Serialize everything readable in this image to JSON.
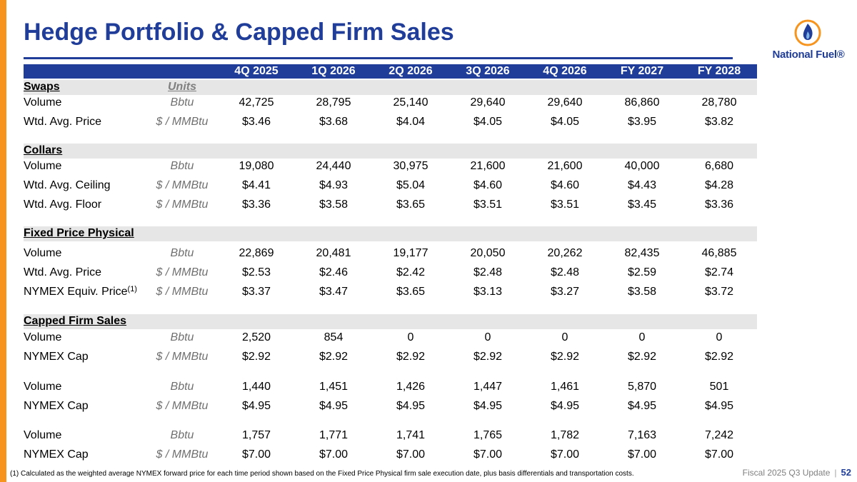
{
  "title": "Hedge Portfolio & Capped Firm Sales",
  "logo": {
    "text": "National Fuel®",
    "icon": "flame-icon"
  },
  "columns": [
    "4Q 2025",
    "1Q 2026",
    "2Q 2026",
    "3Q 2026",
    "4Q 2026",
    "FY 2027",
    "FY 2028"
  ],
  "sections": {
    "swaps": {
      "header": "Swaps",
      "units_header": "Units",
      "rows": [
        {
          "label": "Volume",
          "unit": "Bbtu",
          "values": [
            "42,725",
            "28,795",
            "25,140",
            "29,640",
            "29,640",
            "86,860",
            "28,780"
          ]
        },
        {
          "label": "Wtd. Avg. Price",
          "unit": "$ / MMBtu",
          "values": [
            "$3.46",
            "$3.68",
            "$4.04",
            "$4.05",
            "$4.05",
            "$3.95",
            "$3.82"
          ]
        }
      ]
    },
    "collars": {
      "header": "Collars",
      "rows": [
        {
          "label": "Volume",
          "unit": "Bbtu",
          "values": [
            "19,080",
            "24,440",
            "30,975",
            "21,600",
            "21,600",
            "40,000",
            "6,680"
          ]
        },
        {
          "label": "Wtd. Avg. Ceiling",
          "unit": "$ / MMBtu",
          "values": [
            "$4.41",
            "$4.93",
            "$5.04",
            "$4.60",
            "$4.60",
            "$4.43",
            "$4.28"
          ]
        },
        {
          "label": "Wtd. Avg. Floor",
          "unit": "$ / MMBtu",
          "values": [
            "$3.36",
            "$3.58",
            "$3.65",
            "$3.51",
            "$3.51",
            "$3.45",
            "$3.36"
          ]
        }
      ]
    },
    "fixed": {
      "header": "Fixed Price Physical",
      "rows": [
        {
          "label": "Volume",
          "unit": "Bbtu",
          "values": [
            "22,869",
            "20,481",
            "19,177",
            "20,050",
            "20,262",
            "82,435",
            "46,885"
          ]
        },
        {
          "label": "Wtd. Avg. Price",
          "unit": "$ / MMBtu",
          "values": [
            "$2.53",
            "$2.46",
            "$2.42",
            "$2.48",
            "$2.48",
            "$2.59",
            "$2.74"
          ]
        },
        {
          "label": "NYMEX Equiv. Price",
          "sup": "(1)",
          "unit": "$ / MMBtu",
          "values": [
            "$3.37",
            "$3.47",
            "$3.65",
            "$3.13",
            "$3.27",
            "$3.58",
            "$3.72"
          ]
        }
      ]
    },
    "capped": {
      "header": "Capped Firm Sales",
      "rows": [
        {
          "label": "Volume",
          "unit": "Bbtu",
          "values": [
            "2,520",
            "854",
            "0",
            "0",
            "0",
            "0",
            "0"
          ]
        },
        {
          "label": "NYMEX Cap",
          "unit": "$ / MMBtu",
          "values": [
            "$2.92",
            "$2.92",
            "$2.92",
            "$2.92",
            "$2.92",
            "$2.92",
            "$2.92"
          ]
        },
        {
          "label": "Volume",
          "unit": "Bbtu",
          "values": [
            "1,440",
            "1,451",
            "1,426",
            "1,447",
            "1,461",
            "5,870",
            "501"
          ]
        },
        {
          "label": "NYMEX Cap",
          "unit": "$ / MMBtu",
          "values": [
            "$4.95",
            "$4.95",
            "$4.95",
            "$4.95",
            "$4.95",
            "$4.95",
            "$4.95"
          ]
        },
        {
          "label": "Volume",
          "unit": "Bbtu",
          "values": [
            "1,757",
            "1,771",
            "1,741",
            "1,765",
            "1,782",
            "7,163",
            "7,242"
          ]
        },
        {
          "label": "NYMEX Cap",
          "unit": "$ / MMBtu",
          "values": [
            "$7.00",
            "$7.00",
            "$7.00",
            "$7.00",
            "$7.00",
            "$7.00",
            "$7.00"
          ]
        }
      ]
    }
  },
  "footnote": "(1) Calculated as the weighted average NYMEX forward price for each time period shown based on the Fixed Price Physical firm sale execution date, plus basis differentials and transportation costs.",
  "footer": {
    "label": "Fiscal 2025 Q3 Update",
    "separator": "|",
    "page": "52"
  },
  "colors": {
    "brand_blue": "#1f3d99",
    "accent_orange": "#f7941d",
    "band_gray": "#e6e6e6"
  }
}
